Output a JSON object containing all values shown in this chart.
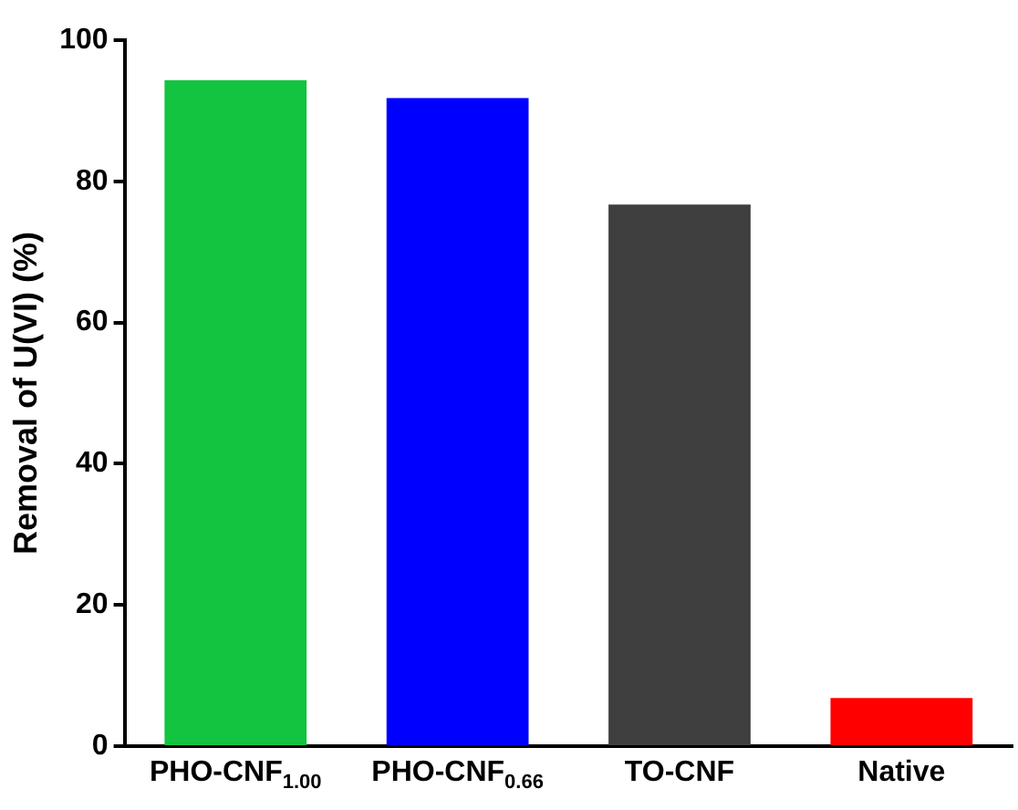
{
  "chart_data": {
    "type": "bar",
    "ylabel": "Removal of U(VI) (%)",
    "categories": [
      "PHO-CNF$_{1.00}$",
      "PHO-CNF$_{0.66}$",
      "TO-CNF",
      "Native"
    ],
    "values": [
      94.3,
      91.8,
      76.7,
      6.8
    ],
    "colors": [
      "#12c43f",
      "#0000ff",
      "#3f3f3f",
      "#ff0000"
    ],
    "ylim": [
      0,
      100
    ],
    "yticks": [
      0,
      20,
      40,
      60,
      80,
      100
    ],
    "grid": false,
    "legend": false
  }
}
